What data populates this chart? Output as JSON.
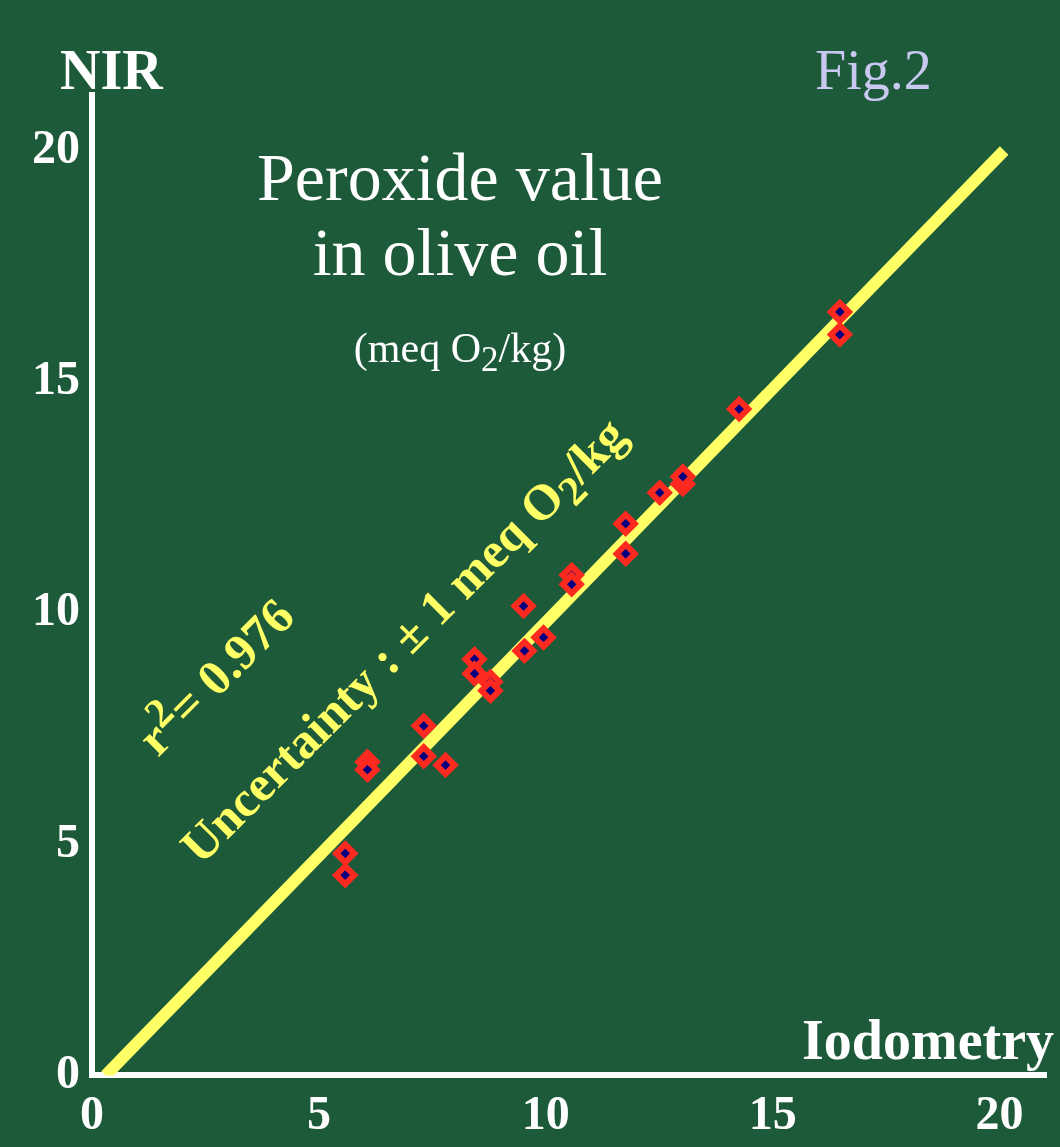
{
  "chart_data": {
    "type": "scatter",
    "title": "Peroxide value\nin olive oil",
    "subtitle": "(meq O$_{2}$/kg)",
    "xlabel": "Iodometry",
    "ylabel": "NIR",
    "annotations": [
      "Fig.2",
      "r$^{2}$= 0.976",
      "Uncertainty : ± 1 meq O$_{2}$/kg"
    ],
    "xlim": [
      0,
      21
    ],
    "ylim": [
      0,
      21.2
    ],
    "xticks": [
      0,
      5,
      10,
      15,
      20
    ],
    "yticks": [
      0,
      5,
      10,
      15,
      20
    ],
    "grid": false,
    "legend": false,
    "series": [
      {
        "type": "line",
        "marker": "none",
        "color": "#ffff66",
        "x": [
          0.3,
          20.1
        ],
        "values": [
          0,
          20
        ]
      },
      {
        "marker": "diamond",
        "color": "#ff2a1f",
        "x": [
          5.58,
          5.58,
          6.07,
          6.07,
          7.31,
          7.31,
          7.79,
          8.43,
          8.43,
          8.78,
          8.78,
          9.51,
          9.53,
          9.95,
          10.57,
          10.57,
          11.76,
          11.76,
          12.51,
          13.02,
          13.02,
          14.26,
          16.48,
          16.48
        ],
        "values": [
          4.8,
          4.33,
          6.78,
          6.61,
          7.56,
          6.9,
          6.71,
          9.0,
          8.69,
          8.51,
          8.32,
          10.15,
          9.18,
          9.47,
          10.82,
          10.62,
          11.93,
          11.28,
          12.6,
          12.79,
          12.95,
          14.41,
          16.51,
          16.02
        ]
      }
    ]
  }
}
